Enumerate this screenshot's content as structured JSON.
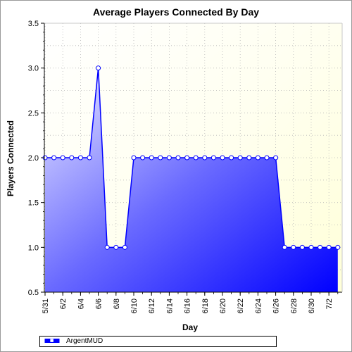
{
  "chart_data": {
    "type": "area",
    "title": "Average Players Connected By Day",
    "xlabel": "Day",
    "ylabel": "Players Connected",
    "x_tick_labels": [
      "5/31",
      "6/2",
      "6/4",
      "6/6",
      "6/8",
      "6/10",
      "6/12",
      "6/14",
      "6/16",
      "6/18",
      "6/20",
      "6/22",
      "6/24",
      "6/26",
      "6/28",
      "6/30",
      "7/2"
    ],
    "ylim": [
      0.5,
      3.5
    ],
    "y_ticks": [
      0.5,
      1.0,
      1.5,
      2.0,
      2.5,
      3.0,
      3.5
    ],
    "y_tick_labels": [
      "0.5",
      "1.0",
      "1.5",
      "2.0",
      "2.5",
      "3.0",
      "3.5"
    ],
    "grid": true,
    "legend_position": "bottom-left",
    "colors": {
      "line": "#0000ff",
      "area_light": "#e8e8ff",
      "area_dark": "#0000ff",
      "plot_bg": "#ffffe6",
      "marker_fill": "#ffffff"
    },
    "series": [
      {
        "name": "ArgentMUD",
        "x": [
          "5/31",
          "6/1",
          "6/2",
          "6/3",
          "6/4",
          "6/5",
          "6/6",
          "6/7",
          "6/8",
          "6/9",
          "6/10",
          "6/11",
          "6/12",
          "6/13",
          "6/14",
          "6/15",
          "6/16",
          "6/17",
          "6/18",
          "6/19",
          "6/20",
          "6/21",
          "6/22",
          "6/23",
          "6/24",
          "6/25",
          "6/26",
          "6/27",
          "6/28",
          "6/29",
          "6/30",
          "7/1",
          "7/2",
          "7/3"
        ],
        "values": [
          2,
          2,
          2,
          2,
          2,
          2,
          3,
          1,
          1,
          1,
          2,
          2,
          2,
          2,
          2,
          2,
          2,
          2,
          2,
          2,
          2,
          2,
          2,
          2,
          2,
          2,
          2,
          1,
          1,
          1,
          1,
          1,
          1,
          1
        ]
      }
    ]
  }
}
